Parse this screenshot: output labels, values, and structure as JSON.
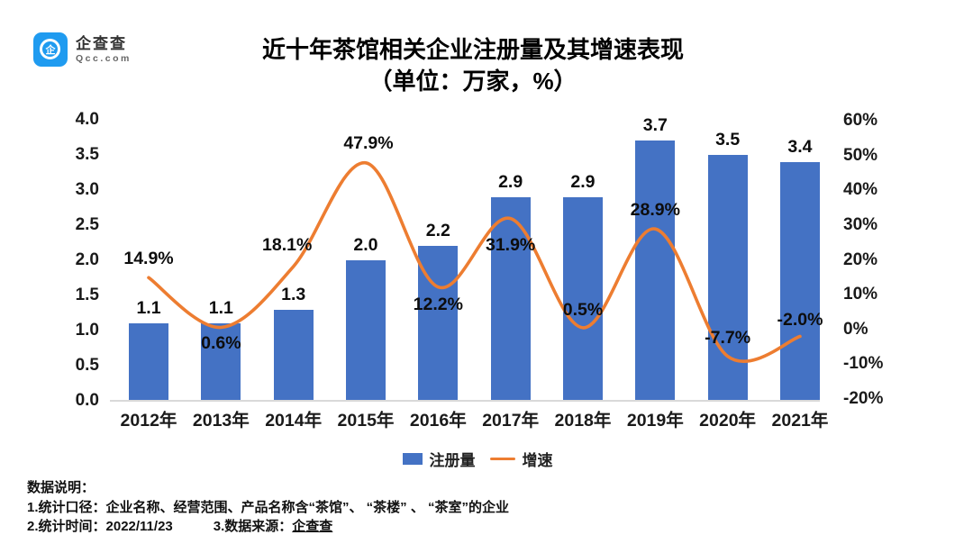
{
  "logo": {
    "name": "企查查",
    "domain": "Qcc.com",
    "icon": "qcc-magnifier-icon",
    "brand_color": "#1f9bf0",
    "glyph": "企"
  },
  "title": {
    "line1": "近十年茶馆相关企业注册量及其增速表现",
    "line2": "（单位：万家，%）"
  },
  "chart_data": {
    "type": "bar+line combo",
    "categories": [
      "2012年",
      "2013年",
      "2014年",
      "2015年",
      "2016年",
      "2017年",
      "2018年",
      "2019年",
      "2020年",
      "2021年"
    ],
    "series": [
      {
        "name": "注册量",
        "type": "bar",
        "axis": "left",
        "color": "#4472c4",
        "values": [
          1.1,
          1.1,
          1.3,
          2.0,
          2.2,
          2.9,
          2.9,
          3.7,
          3.5,
          3.4
        ],
        "labels": [
          "1.1",
          "1.1",
          "1.3",
          "2.0",
          "2.2",
          "2.9",
          "2.9",
          "3.7",
          "3.5",
          "3.4"
        ]
      },
      {
        "name": "增速",
        "type": "line",
        "axis": "right",
        "color": "#ed7d31",
        "smooth": true,
        "values": [
          14.9,
          0.6,
          18.1,
          47.9,
          12.2,
          31.9,
          0.5,
          28.9,
          -7.7,
          -2.0
        ],
        "labels": [
          "14.9%",
          "0.6%",
          "18.1%",
          "47.9%",
          "12.2%",
          "31.9%",
          "0.5%",
          "28.9%",
          "-7.7%",
          "-2.0%"
        ]
      }
    ],
    "left_axis": {
      "ticks": [
        "4.0",
        "3.5",
        "3.0",
        "2.5",
        "2.0",
        "1.5",
        "1.0",
        "0.5",
        "0.0"
      ],
      "range": [
        0.0,
        4.0
      ]
    },
    "right_axis": {
      "ticks": [
        "60%",
        "50%",
        "40%",
        "30%",
        "20%",
        "10%",
        "0%",
        "-10%",
        "-20%"
      ],
      "range": [
        -20,
        60
      ]
    },
    "legend": [
      {
        "label": "注册量",
        "swatch": "bar"
      },
      {
        "label": "增速",
        "swatch": "line"
      }
    ],
    "grid": false,
    "legend_position": "bottom"
  },
  "footer": {
    "heading": "数据说明：",
    "scope_line": "1.统计口径：企业名称、经营范围、产品名称含“茶馆”、 “茶楼” 、 “茶室”的企业",
    "time_label": "2.统计时间：2022/11/23",
    "source_label": "3.数据来源：",
    "source_name": "企查查"
  }
}
